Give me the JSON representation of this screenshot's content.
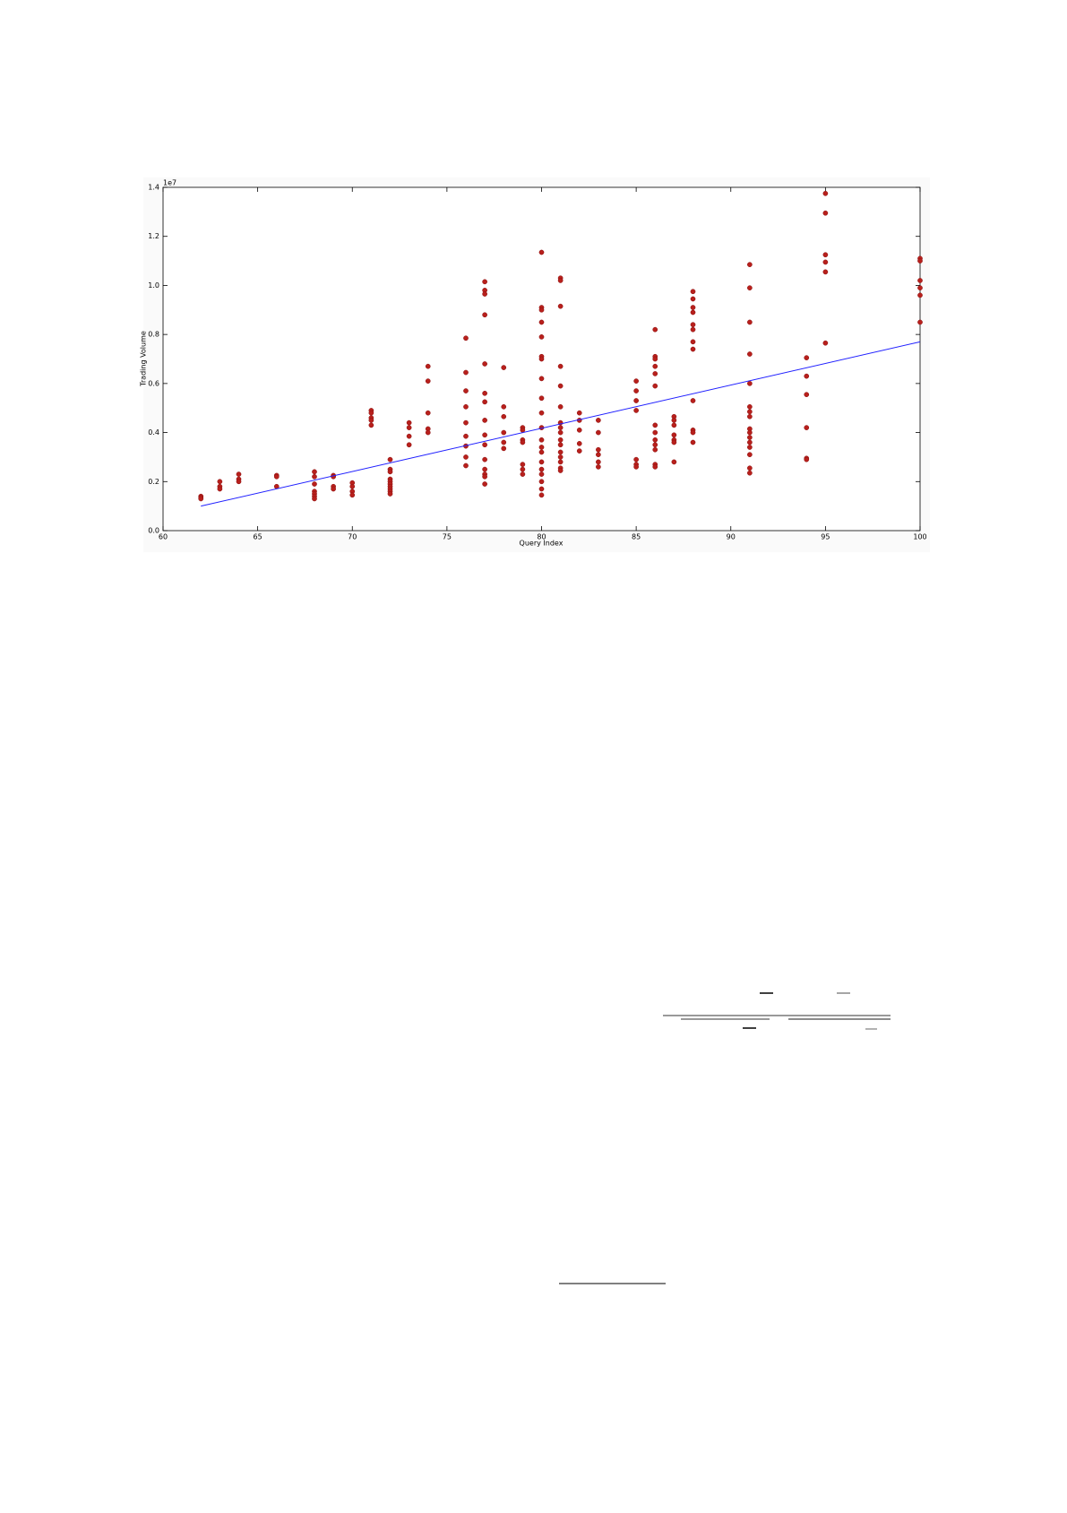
{
  "chart_data": {
    "type": "scatter",
    "xlabel": "Query Index",
    "ylabel": "Trading Volume",
    "y_offset_label": "1e7",
    "xlim": [
      60,
      100
    ],
    "ylim": [
      0,
      1.4
    ],
    "xticks": [
      60,
      65,
      70,
      75,
      80,
      85,
      90,
      95,
      100
    ],
    "yticks": [
      {
        "value": 0,
        "label": "0.0"
      },
      0.2,
      0.4,
      0.6,
      0.8,
      {
        "value": 1,
        "label": "1.0"
      },
      1.2,
      1.4
    ],
    "series": [
      {
        "type": "scatter",
        "color": "#b8201c",
        "x": [
          62,
          62,
          62,
          63,
          63,
          63,
          64,
          64,
          64,
          66,
          66,
          66,
          68,
          68,
          68,
          68,
          68,
          68,
          68,
          69,
          69,
          69,
          69,
          70,
          70,
          70,
          70,
          71,
          71,
          71,
          71,
          71,
          72,
          72,
          72,
          72,
          72,
          72,
          72,
          72,
          72,
          72,
          73,
          73,
          73,
          73,
          74,
          74,
          74,
          74,
          74,
          76,
          76,
          76,
          76,
          76,
          76,
          76,
          76,
          76,
          77,
          77,
          77,
          77,
          77,
          77,
          77,
          77,
          77,
          77,
          77,
          77,
          77,
          77,
          77,
          78,
          78,
          78,
          78,
          78,
          78,
          79,
          79,
          79,
          79,
          79,
          79,
          79,
          80,
          80,
          80,
          80,
          80,
          80,
          80,
          80,
          80,
          80,
          80,
          80,
          80,
          80,
          80,
          80,
          80,
          80,
          80,
          80,
          81,
          81,
          81,
          81,
          81,
          81,
          81,
          81,
          81,
          81,
          81,
          81,
          81,
          81,
          81,
          81,
          82,
          82,
          82,
          82,
          82,
          83,
          83,
          83,
          83,
          83,
          83,
          85,
          85,
          85,
          85,
          85,
          85,
          85,
          86,
          86,
          86,
          86,
          86,
          86,
          86,
          86,
          86,
          86,
          86,
          86,
          86,
          87,
          87,
          87,
          87,
          87,
          87,
          87,
          88,
          88,
          88,
          88,
          88,
          88,
          88,
          88,
          88,
          88,
          88,
          88,
          91,
          91,
          91,
          91,
          91,
          91,
          91,
          91,
          91,
          91,
          91,
          91,
          91,
          91,
          91,
          91,
          94,
          94,
          94,
          94,
          94,
          94,
          95,
          95,
          95,
          95,
          95,
          95,
          100,
          100,
          100,
          100,
          100,
          100
        ],
        "values": [
          0.14,
          0.135,
          0.13,
          0.2,
          0.18,
          0.17,
          0.23,
          0.21,
          0.2,
          0.225,
          0.22,
          0.18,
          0.24,
          0.22,
          0.19,
          0.16,
          0.15,
          0.14,
          0.13,
          0.225,
          0.22,
          0.18,
          0.17,
          0.195,
          0.18,
          0.16,
          0.145,
          0.49,
          0.48,
          0.46,
          0.45,
          0.43,
          0.29,
          0.25,
          0.24,
          0.21,
          0.2,
          0.19,
          0.18,
          0.17,
          0.16,
          0.15,
          0.44,
          0.42,
          0.385,
          0.35,
          0.67,
          0.61,
          0.48,
          0.415,
          0.4,
          0.785,
          0.645,
          0.57,
          0.505,
          0.44,
          0.385,
          0.345,
          0.3,
          0.265,
          1.015,
          0.98,
          0.965,
          0.88,
          0.68,
          0.56,
          0.525,
          0.45,
          0.39,
          0.35,
          0.29,
          0.25,
          0.23,
          0.22,
          0.19,
          0.665,
          0.505,
          0.465,
          0.4,
          0.36,
          0.335,
          0.42,
          0.41,
          0.37,
          0.36,
          0.27,
          0.25,
          0.23,
          1.135,
          0.91,
          0.9,
          0.85,
          0.79,
          0.71,
          0.7,
          0.62,
          0.54,
          0.48,
          0.42,
          0.37,
          0.34,
          0.32,
          0.28,
          0.25,
          0.23,
          0.2,
          0.17,
          0.145,
          1.03,
          1.02,
          0.915,
          0.67,
          0.59,
          0.505,
          0.44,
          0.42,
          0.4,
          0.37,
          0.35,
          0.32,
          0.3,
          0.28,
          0.255,
          0.245,
          0.48,
          0.45,
          0.41,
          0.355,
          0.325,
          0.45,
          0.4,
          0.33,
          0.31,
          0.28,
          0.26,
          0.61,
          0.57,
          0.53,
          0.49,
          0.29,
          0.27,
          0.26,
          0.82,
          0.71,
          0.7,
          0.67,
          0.64,
          0.59,
          0.43,
          0.4,
          0.37,
          0.35,
          0.33,
          0.27,
          0.26,
          0.465,
          0.45,
          0.43,
          0.39,
          0.37,
          0.36,
          0.28,
          0.975,
          0.945,
          0.91,
          0.89,
          0.84,
          0.82,
          0.77,
          0.74,
          0.53,
          0.41,
          0.4,
          0.36,
          1.085,
          0.99,
          0.85,
          0.72,
          0.6,
          0.505,
          0.485,
          0.465,
          0.415,
          0.4,
          0.38,
          0.36,
          0.34,
          0.31,
          0.255,
          0.235,
          0.705,
          0.63,
          0.555,
          0.42,
          0.295,
          0.29,
          1.375,
          1.295,
          1.125,
          1.095,
          1.055,
          0.765,
          1.11,
          1.1,
          1.02,
          0.99,
          0.96,
          0.85
        ]
      },
      {
        "type": "line",
        "color": "#2020ff",
        "x": [
          62,
          100
        ],
        "values": [
          0.1,
          0.77
        ]
      }
    ]
  }
}
